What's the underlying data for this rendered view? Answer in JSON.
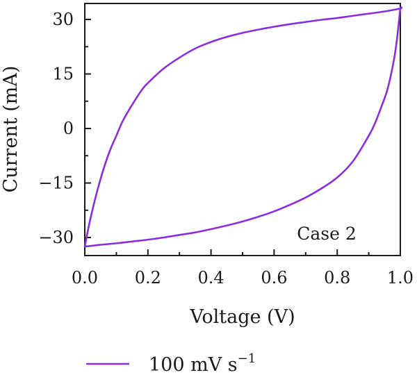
{
  "chart_data": {
    "type": "line",
    "xlabel": "Voltage (V)",
    "ylabel": "Current (mA)",
    "xlim": [
      0.0,
      1.0
    ],
    "ylim": [
      -35,
      35
    ],
    "xticks": [
      0.0,
      0.2,
      0.4,
      0.6,
      0.8,
      1.0
    ],
    "xtick_labels": [
      "0.0",
      "0.2",
      "0.4",
      "0.6",
      "0.8",
      "1.0"
    ],
    "yticks": [
      30,
      15,
      0,
      -15,
      -30
    ],
    "ytick_labels": [
      "30",
      "15",
      "0",
      "−15",
      "−30"
    ],
    "annotation": "Case 2",
    "grid": false,
    "legend_position": "bottom",
    "series": [
      {
        "name": "100 mV s",
        "name_superscript": "−1",
        "color": "#8b2be2",
        "charge_branch": {
          "x": [
            0.0,
            0.01,
            0.02,
            0.04,
            0.06,
            0.08,
            0.1,
            0.12,
            0.15,
            0.18,
            0.2,
            0.25,
            0.3,
            0.35,
            0.4,
            0.45,
            0.5,
            0.55,
            0.6,
            0.65,
            0.7,
            0.75,
            0.8,
            0.85,
            0.9,
            0.95,
            1.0
          ],
          "y": [
            -32.5,
            -28,
            -24,
            -17,
            -11,
            -6,
            -2,
            2,
            6.5,
            10.5,
            12.5,
            16.5,
            19.5,
            22,
            23.8,
            25.2,
            26.3,
            27.2,
            28,
            28.7,
            29.3,
            29.9,
            30.4,
            31,
            31.6,
            32.2,
            33
          ]
        },
        "discharge_branch": {
          "x": [
            1.0,
            0.995,
            0.99,
            0.98,
            0.96,
            0.94,
            0.92,
            0.9,
            0.85,
            0.8,
            0.75,
            0.7,
            0.65,
            0.6,
            0.55,
            0.5,
            0.45,
            0.4,
            0.35,
            0.3,
            0.25,
            0.2,
            0.15,
            0.1,
            0.05,
            0.02,
            0.0
          ],
          "y": [
            33,
            29,
            25,
            19,
            11,
            6,
            1.5,
            -2,
            -9,
            -13.5,
            -16.5,
            -19,
            -21,
            -22.8,
            -24.3,
            -25.6,
            -26.7,
            -27.7,
            -28.6,
            -29.3,
            -30,
            -30.6,
            -31.1,
            -31.6,
            -32,
            -32.3,
            -32.5
          ]
        }
      }
    ]
  }
}
